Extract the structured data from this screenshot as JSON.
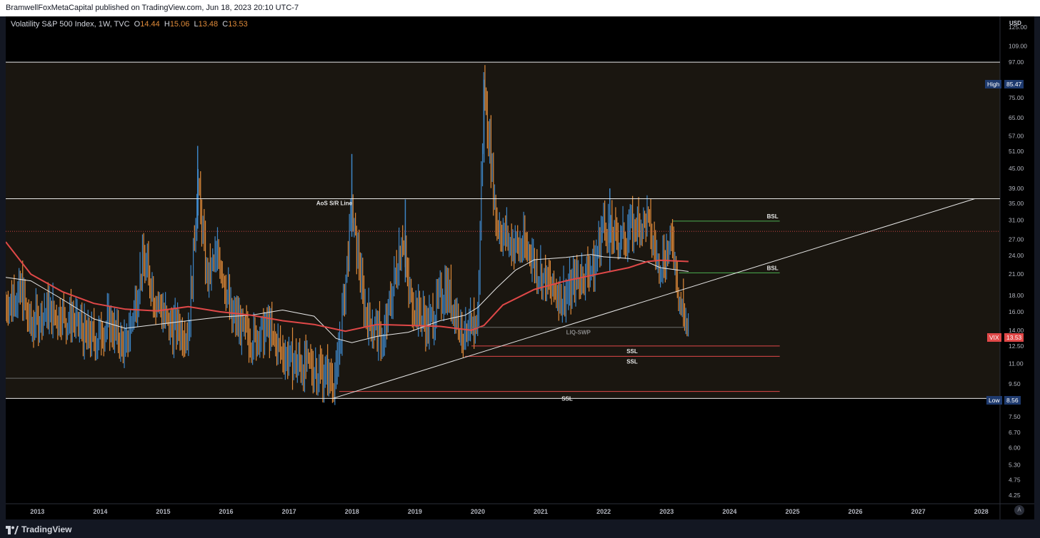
{
  "publisher_line": "BramwellFoxMetaCapital published on TradingView.com, Jun 18, 2023 20:10 UTC-7",
  "legend": {
    "symbol": "Volatility S&P 500 Index, 1W, TVC",
    "open_label": "O",
    "open": "14.44",
    "high_label": "H",
    "high": "15.06",
    "low_label": "L",
    "low": "13.48",
    "close_label": "C",
    "close": "13.53"
  },
  "currency": "USD",
  "brand": "TradingView",
  "auto_button": "A",
  "price_tags": {
    "high_label": "High",
    "high_value": "85.47",
    "low_label": "Low",
    "low_value": "8.56",
    "symbol_label": "VIX",
    "symbol_value": "13.53"
  },
  "colors": {
    "up_bar": "#3d85c6",
    "down_bar": "#e08b3a",
    "sma_red": "#e04848",
    "sma_white": "#e8e8e8",
    "band_fill": "#1a1610",
    "ssl_line": "#e04848",
    "bsl_line": "#4caf50",
    "high_tag_bg": "#1e3a6e",
    "symbol_tag_bg": "#e04848"
  },
  "chart_data": {
    "type": "bar",
    "title": "Volatility S&P 500 Index, 1W, TVC",
    "xlabel": "",
    "ylabel": "",
    "scale": "log",
    "x_ticks": [
      "2013",
      "2014",
      "2015",
      "2016",
      "2017",
      "2018",
      "2019",
      "2020",
      "2021",
      "2022",
      "2023",
      "2024",
      "2025",
      "2026",
      "2027",
      "2028"
    ],
    "y_ticks": [
      "125.00",
      "109.00",
      "97.00",
      "75.00",
      "65.00",
      "57.00",
      "51.00",
      "45.00",
      "39.00",
      "35.00",
      "31.00",
      "27.00",
      "24.00",
      "21.00",
      "18.00",
      "16.00",
      "14.00",
      "12.50",
      "11.00",
      "9.50",
      "7.50",
      "6.70",
      "6.00",
      "5.30",
      "4.75",
      "4.25"
    ],
    "y_tick_values": [
      125,
      109,
      97,
      75,
      65,
      57,
      51,
      45,
      39,
      35,
      31,
      27,
      24,
      21,
      18,
      16,
      14,
      12.5,
      11,
      9.5,
      7.5,
      6.7,
      6,
      5.3,
      4.75,
      4.25
    ],
    "x_range": [
      2012.6,
      2028.4
    ],
    "y_range": [
      4.0,
      135
    ],
    "price_points": [
      [
        2012.6,
        16.5
      ],
      [
        2012.85,
        18.5
      ],
      [
        2013.0,
        14.0
      ],
      [
        2013.25,
        16.0
      ],
      [
        2013.5,
        15.5
      ],
      [
        2013.75,
        14.0
      ],
      [
        2014.0,
        13.0
      ],
      [
        2014.25,
        14.5
      ],
      [
        2014.5,
        12.0
      ],
      [
        2014.8,
        23.0
      ],
      [
        2015.0,
        17.0
      ],
      [
        2015.25,
        14.0
      ],
      [
        2015.5,
        13.5
      ],
      [
        2015.65,
        40.0
      ],
      [
        2015.8,
        20.0
      ],
      [
        2016.0,
        24.0
      ],
      [
        2016.2,
        15.0
      ],
      [
        2016.5,
        13.0
      ],
      [
        2016.75,
        14.0
      ],
      [
        2017.0,
        11.5
      ],
      [
        2017.25,
        11.0
      ],
      [
        2017.5,
        10.5
      ],
      [
        2017.85,
        9.5
      ],
      [
        2018.1,
        33.0
      ],
      [
        2018.3,
        16.0
      ],
      [
        2018.6,
        12.5
      ],
      [
        2018.9,
        28.0
      ],
      [
        2019.0,
        18.0
      ],
      [
        2019.3,
        14.0
      ],
      [
        2019.6,
        19.0
      ],
      [
        2019.9,
        13.0
      ],
      [
        2020.1,
        15.0
      ],
      [
        2020.2,
        82.0
      ],
      [
        2020.4,
        30.0
      ],
      [
        2020.6,
        26.0
      ],
      [
        2020.9,
        25.0
      ],
      [
        2021.0,
        22.0
      ],
      [
        2021.25,
        19.0
      ],
      [
        2021.5,
        17.5
      ],
      [
        2021.7,
        20.0
      ],
      [
        2021.95,
        22.0
      ],
      [
        2022.1,
        30.0
      ],
      [
        2022.3,
        26.0
      ],
      [
        2022.5,
        28.0
      ],
      [
        2022.8,
        31.0
      ],
      [
        2022.95,
        22.0
      ],
      [
        2023.2,
        26.0
      ],
      [
        2023.3,
        18.0
      ],
      [
        2023.45,
        13.53
      ]
    ],
    "sma_red_points": [
      [
        2012.6,
        26.5
      ],
      [
        2013.0,
        21.0
      ],
      [
        2013.5,
        18.5
      ],
      [
        2014.0,
        17.0
      ],
      [
        2014.5,
        16.3
      ],
      [
        2015.0,
        16.1
      ],
      [
        2015.5,
        16.6
      ],
      [
        2016.0,
        16.0
      ],
      [
        2016.5,
        15.6
      ],
      [
        2017.0,
        15.0
      ],
      [
        2017.5,
        14.6
      ],
      [
        2018.0,
        13.9
      ],
      [
        2018.5,
        14.6
      ],
      [
        2019.0,
        14.5
      ],
      [
        2019.5,
        14.4
      ],
      [
        2020.0,
        14.0
      ],
      [
        2020.2,
        14.5
      ],
      [
        2020.5,
        16.8
      ],
      [
        2021.0,
        18.8
      ],
      [
        2021.5,
        20.0
      ],
      [
        2022.0,
        21.0
      ],
      [
        2022.5,
        22.0
      ],
      [
        2022.8,
        23.0
      ],
      [
        2023.0,
        23.2
      ],
      [
        2023.45,
        23.0
      ]
    ],
    "sma_white_points": [
      [
        2012.6,
        20.5
      ],
      [
        2013.0,
        20.0
      ],
      [
        2013.5,
        17.5
      ],
      [
        2014.0,
        15.2
      ],
      [
        2014.5,
        14.2
      ],
      [
        2015.0,
        14.6
      ],
      [
        2015.5,
        15.0
      ],
      [
        2016.0,
        15.4
      ],
      [
        2016.5,
        15.6
      ],
      [
        2017.0,
        16.2
      ],
      [
        2017.5,
        15.5
      ],
      [
        2017.85,
        13.2
      ],
      [
        2018.1,
        12.8
      ],
      [
        2018.5,
        13.4
      ],
      [
        2019.0,
        13.8
      ],
      [
        2019.5,
        15.0
      ],
      [
        2019.9,
        15.6
      ],
      [
        2020.1,
        16.5
      ],
      [
        2020.4,
        19.0
      ],
      [
        2020.7,
        21.6
      ],
      [
        2021.0,
        23.3
      ],
      [
        2021.5,
        23.7
      ],
      [
        2021.9,
        24.2
      ],
      [
        2022.1,
        23.8
      ],
      [
        2022.5,
        23.5
      ],
      [
        2022.8,
        22.9
      ],
      [
        2023.0,
        22.0
      ],
      [
        2023.45,
        21.4
      ]
    ],
    "annotations": [
      {
        "type": "hline",
        "label": "",
        "value": 97.0,
        "x_from": 2012.6,
        "x_to": 2028.4
      },
      {
        "type": "hline",
        "label": "AoS S/R Line",
        "value": 36.2,
        "x_from": 2012.6,
        "x_to": 2028.4
      },
      {
        "type": "hline",
        "label": "",
        "value": 28.6,
        "x_from": 2012.6,
        "x_to": 2028.4,
        "style": "dotted-red"
      },
      {
        "type": "hline",
        "label": "",
        "value": 8.56,
        "x_from": 2012.6,
        "x_to": 2028.4
      },
      {
        "type": "hline",
        "label": "",
        "value": 9.9,
        "x_from": 2012.6,
        "x_to": 2017.0,
        "style": "gray"
      },
      {
        "type": "hline",
        "label": "BSL",
        "value": 30.8,
        "x_from": 2023.2,
        "x_to": 2024.9,
        "style": "green"
      },
      {
        "type": "hline",
        "label": "BSL",
        "value": 21.2,
        "x_from": 2023.3,
        "x_to": 2024.9,
        "style": "green"
      },
      {
        "type": "hline",
        "label": "SSL",
        "value": 12.5,
        "x_from": 2020.0,
        "x_to": 2024.9,
        "style": "red"
      },
      {
        "type": "hline",
        "label": "SSL",
        "value": 11.6,
        "x_from": 2019.9,
        "x_to": 2024.9,
        "style": "red"
      },
      {
        "type": "hline",
        "label": "",
        "value": 9.0,
        "x_from": 2017.9,
        "x_to": 2024.9,
        "style": "red"
      },
      {
        "type": "hline",
        "label": "LIQ-SWP",
        "value": 14.3,
        "x_from": 2020.0,
        "x_to": 2023.4,
        "style": "gray"
      },
      {
        "type": "trendline",
        "label": "",
        "from": [
          2017.8,
          8.56
        ],
        "to": [
          2028.0,
          36.2
        ]
      }
    ]
  }
}
